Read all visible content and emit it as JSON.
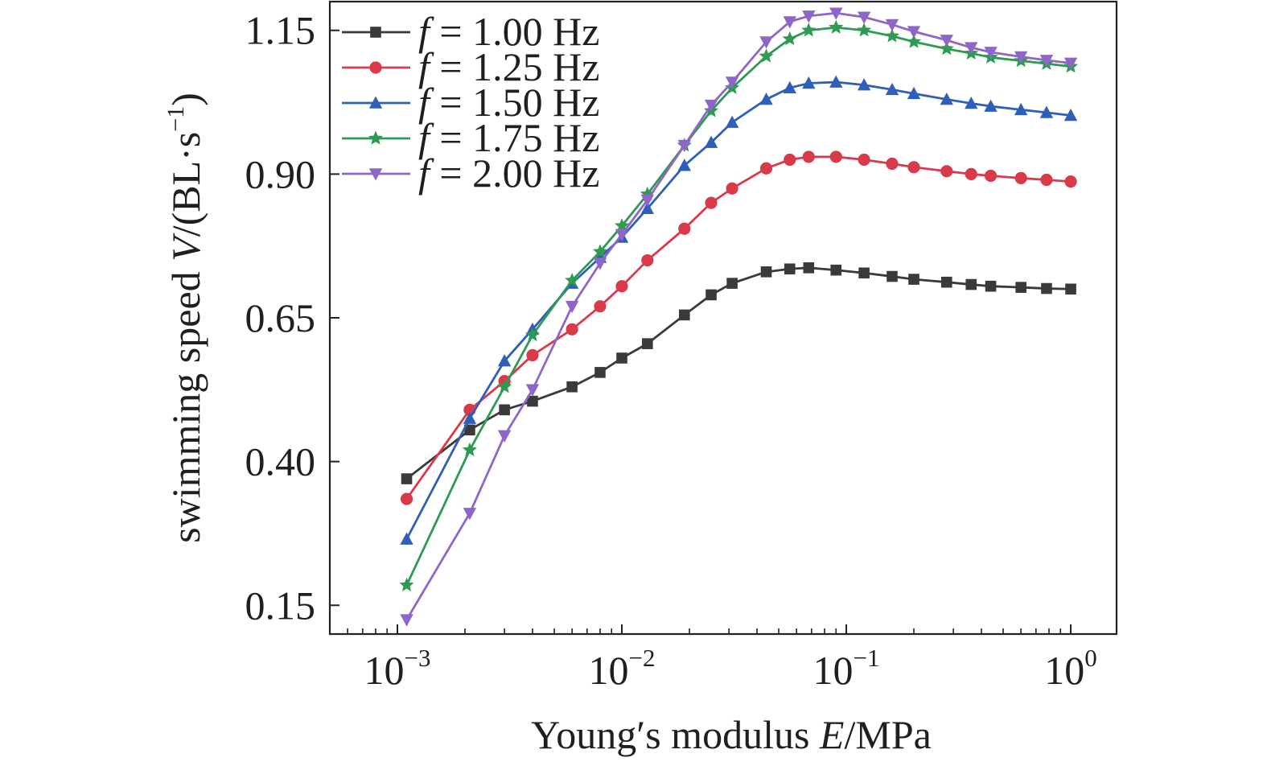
{
  "chart_data": {
    "type": "line",
    "xlabel": "Young′s modulus E/MPa",
    "xlabel_parts": {
      "prefix": "Young′s modulus ",
      "variable": "E",
      "suffix": "/MPa"
    },
    "ylabel": "swimming speed V/(BL·s⁻¹)",
    "ylabel_parts": {
      "prefix": "swimming speed ",
      "variable": "V",
      "suffix": "/(BL·s",
      "exponent": "−1",
      "close": ")"
    },
    "x_scale": "log",
    "xlim": [
      0.0005,
      1.6
    ],
    "ylim": [
      0.1,
      1.2
    ],
    "x_ticks": [
      {
        "value": 0.001,
        "base": "10",
        "exp": "−3"
      },
      {
        "value": 0.01,
        "base": "10",
        "exp": "−2"
      },
      {
        "value": 0.1,
        "base": "10",
        "exp": "−1"
      },
      {
        "value": 1,
        "base": "10",
        "exp": "0"
      }
    ],
    "y_ticks": [
      "0.15",
      "0.40",
      "0.65",
      "0.90",
      "1.15"
    ],
    "x": [
      0.0011,
      0.0021,
      0.003,
      0.004,
      0.006,
      0.008,
      0.01,
      0.013,
      0.019,
      0.025,
      0.031,
      0.044,
      0.056,
      0.068,
      0.09,
      0.12,
      0.16,
      0.2,
      0.28,
      0.36,
      0.44,
      0.6,
      0.78,
      1.0
    ],
    "legend_position": "top-left",
    "series": [
      {
        "name": "f = 1.00 Hz",
        "legend_f": "f",
        "legend_rest": " = 1.00 Hz",
        "color": "#3a3a3a",
        "marker": "square",
        "values": [
          0.37,
          0.455,
          0.49,
          0.505,
          0.53,
          0.555,
          0.58,
          0.605,
          0.655,
          0.69,
          0.71,
          0.73,
          0.735,
          0.737,
          0.733,
          0.728,
          0.722,
          0.717,
          0.712,
          0.708,
          0.705,
          0.703,
          0.701,
          0.7
        ]
      },
      {
        "name": "f = 1.25 Hz",
        "legend_f": "f",
        "legend_rest": " = 1.25 Hz",
        "color": "#d93a4a",
        "marker": "circle",
        "values": [
          0.335,
          0.49,
          0.54,
          0.585,
          0.63,
          0.67,
          0.705,
          0.75,
          0.805,
          0.85,
          0.875,
          0.91,
          0.925,
          0.93,
          0.93,
          0.925,
          0.918,
          0.912,
          0.905,
          0.9,
          0.897,
          0.893,
          0.89,
          0.887
        ]
      },
      {
        "name": "f = 1.50 Hz",
        "legend_f": "f",
        "legend_rest": " = 1.50 Hz",
        "color": "#2f5fb8",
        "marker": "triangle-up",
        "values": [
          0.265,
          0.475,
          0.575,
          0.63,
          0.71,
          0.755,
          0.79,
          0.84,
          0.915,
          0.955,
          0.99,
          1.03,
          1.05,
          1.058,
          1.06,
          1.055,
          1.047,
          1.04,
          1.03,
          1.023,
          1.018,
          1.012,
          1.007,
          1.002
        ]
      },
      {
        "name": "f = 1.75 Hz",
        "legend_f": "f",
        "legend_rest": " = 1.75 Hz",
        "color": "#2e9a52",
        "marker": "star",
        "values": [
          0.185,
          0.42,
          0.53,
          0.62,
          0.715,
          0.765,
          0.81,
          0.865,
          0.95,
          1.01,
          1.05,
          1.105,
          1.135,
          1.15,
          1.155,
          1.15,
          1.14,
          1.13,
          1.118,
          1.11,
          1.103,
          1.097,
          1.092,
          1.087
        ]
      },
      {
        "name": "f = 2.00 Hz",
        "legend_f": "f",
        "legend_rest": " = 2.00 Hz",
        "color": "#8e66c8",
        "marker": "triangle-down",
        "values": [
          0.125,
          0.31,
          0.445,
          0.525,
          0.67,
          0.745,
          0.795,
          0.855,
          0.95,
          1.02,
          1.06,
          1.13,
          1.165,
          1.175,
          1.18,
          1.173,
          1.16,
          1.148,
          1.133,
          1.12,
          1.112,
          1.104,
          1.098,
          1.093
        ]
      }
    ]
  }
}
